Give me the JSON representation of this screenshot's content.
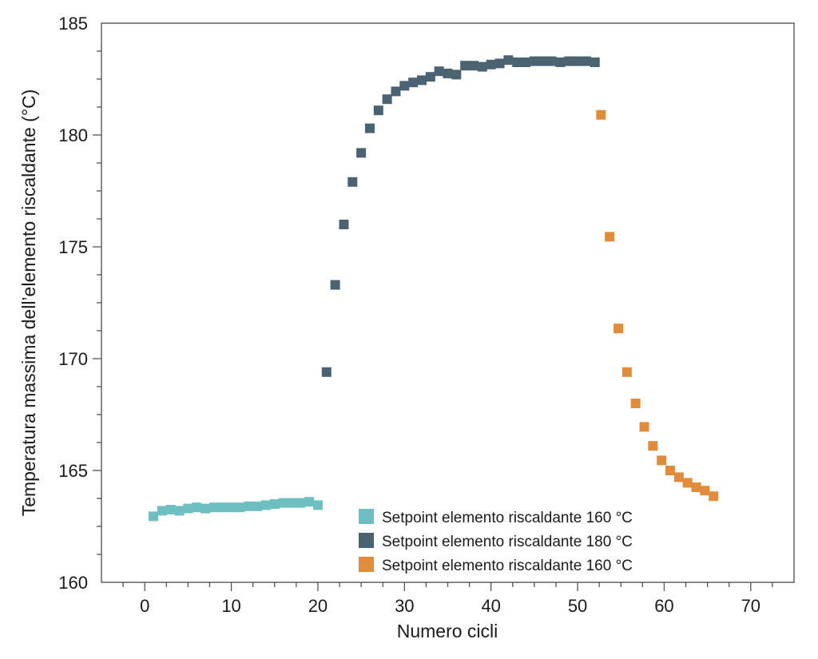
{
  "chart_data": {
    "type": "scatter",
    "title": "",
    "xlabel": "Numero cicli",
    "ylabel": "Temperatura massima dell’elemento riscaldante (°C)",
    "xlim": [
      -5,
      75
    ],
    "ylim": [
      160,
      185
    ],
    "x_ticks": [
      0,
      10,
      20,
      30,
      40,
      50,
      60,
      70
    ],
    "y_ticks": [
      160,
      165,
      170,
      175,
      180,
      185
    ],
    "x_minor_step": 2.5,
    "y_minor_step": 1.25,
    "grid": false,
    "legend_position": "bottom-center",
    "series": [
      {
        "name": "Setpoint elemento riscaldante 160 °C",
        "color": "#6ebfc1",
        "marker": "square",
        "points": [
          [
            1,
            162.95
          ],
          [
            2,
            163.2
          ],
          [
            3,
            163.25
          ],
          [
            4,
            163.2
          ],
          [
            5,
            163.3
          ],
          [
            6,
            163.35
          ],
          [
            7,
            163.3
          ],
          [
            8,
            163.35
          ],
          [
            9,
            163.35
          ],
          [
            10,
            163.35
          ],
          [
            11,
            163.35
          ],
          [
            12,
            163.4
          ],
          [
            13,
            163.4
          ],
          [
            14,
            163.45
          ],
          [
            15,
            163.5
          ],
          [
            16,
            163.55
          ],
          [
            17,
            163.55
          ],
          [
            18,
            163.55
          ],
          [
            19,
            163.6
          ],
          [
            20,
            163.45
          ]
        ]
      },
      {
        "name": "Setpoint elemento riscaldante 180 °C",
        "color": "#4b6273",
        "marker": "square",
        "points": [
          [
            21,
            169.4
          ],
          [
            22,
            173.3
          ],
          [
            23,
            176.0
          ],
          [
            24,
            177.9
          ],
          [
            25,
            179.2
          ],
          [
            26,
            180.3
          ],
          [
            27,
            181.1
          ],
          [
            28,
            181.6
          ],
          [
            29,
            181.95
          ],
          [
            30,
            182.2
          ],
          [
            31,
            182.35
          ],
          [
            32,
            182.45
          ],
          [
            33,
            182.6
          ],
          [
            34,
            182.85
          ],
          [
            35,
            182.75
          ],
          [
            36,
            182.7
          ],
          [
            37,
            183.1
          ],
          [
            38,
            183.1
          ],
          [
            39,
            183.05
          ],
          [
            40,
            183.15
          ],
          [
            41,
            183.2
          ],
          [
            42,
            183.35
          ],
          [
            43,
            183.25
          ],
          [
            44,
            183.25
          ],
          [
            45,
            183.3
          ],
          [
            46,
            183.3
          ],
          [
            47,
            183.3
          ],
          [
            48,
            183.25
          ],
          [
            49,
            183.3
          ],
          [
            50,
            183.3
          ],
          [
            51,
            183.3
          ],
          [
            52,
            183.25
          ]
        ]
      },
      {
        "name": "Setpoint elemento riscaldante 160 °C",
        "color": "#e08c3a",
        "marker": "square",
        "points": [
          [
            52.7,
            180.9
          ],
          [
            53.7,
            175.45
          ],
          [
            54.7,
            171.35
          ],
          [
            55.7,
            169.4
          ],
          [
            56.7,
            168.0
          ],
          [
            57.7,
            166.95
          ],
          [
            58.7,
            166.1
          ],
          [
            59.7,
            165.45
          ],
          [
            60.7,
            165.0
          ],
          [
            61.7,
            164.7
          ],
          [
            62.7,
            164.45
          ],
          [
            63.7,
            164.25
          ],
          [
            64.7,
            164.1
          ],
          [
            65.7,
            163.85
          ]
        ]
      }
    ]
  }
}
